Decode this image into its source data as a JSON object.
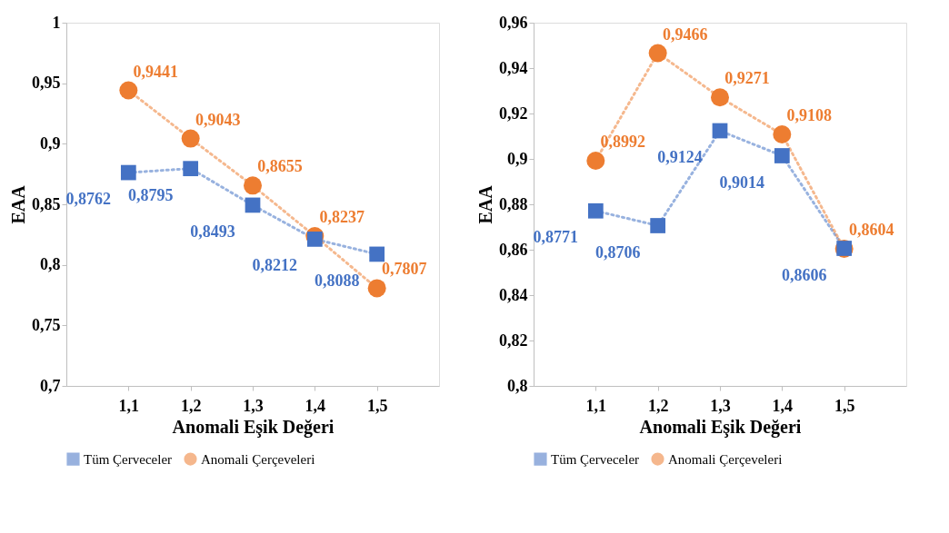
{
  "chart_data": [
    {
      "type": "line",
      "xlabel": "Anomali Eşik Değeri",
      "ylabel": "EAA",
      "categories": [
        "1,1",
        "1,2",
        "1,3",
        "1,4",
        "1,5"
      ],
      "ylim": [
        0.7,
        1
      ],
      "yticks": [
        {
          "value": 0.7,
          "label": "0,7"
        },
        {
          "value": 0.75,
          "label": "0,75"
        },
        {
          "value": 0.8,
          "label": "0,8"
        },
        {
          "value": 0.85,
          "label": "0,85"
        },
        {
          "value": 0.9,
          "label": "0,9"
        },
        {
          "value": 0.95,
          "label": "0,95"
        },
        {
          "value": 1,
          "label": "1"
        }
      ],
      "grid": false,
      "legend": "bottom",
      "line_style": "dotted",
      "series": [
        {
          "name": "Tüm Çerveceler",
          "color": "#4472c4",
          "marker": "square",
          "values": [
            0.8762,
            0.8795,
            0.8493,
            0.8212,
            0.8088
          ],
          "value_labels": [
            "0,8762",
            "0,8795",
            "0,8493",
            "0,8212",
            "0,8088"
          ]
        },
        {
          "name": "Anomali Çerçeveleri",
          "color": "#ed7d31",
          "marker": "circle",
          "values": [
            0.9441,
            0.9043,
            0.8655,
            0.8237,
            0.7807
          ],
          "value_labels": [
            "0,9441",
            "0,9043",
            "0,8655",
            "0,8237",
            "0,7807"
          ]
        }
      ]
    },
    {
      "type": "line",
      "xlabel": "Anomali Eşik Değeri",
      "ylabel": "EAA",
      "categories": [
        "1,1",
        "1,2",
        "1,3",
        "1,4",
        "1,5"
      ],
      "ylim": [
        0.8,
        0.96
      ],
      "yticks": [
        {
          "value": 0.8,
          "label": "0,8"
        },
        {
          "value": 0.82,
          "label": "0,82"
        },
        {
          "value": 0.84,
          "label": "0,84"
        },
        {
          "value": 0.86,
          "label": "0,86"
        },
        {
          "value": 0.88,
          "label": "0,88"
        },
        {
          "value": 0.9,
          "label": "0,9"
        },
        {
          "value": 0.92,
          "label": "0,92"
        },
        {
          "value": 0.94,
          "label": "0,94"
        },
        {
          "value": 0.96,
          "label": "0,96"
        }
      ],
      "grid": false,
      "legend": "bottom",
      "line_style": "dotted",
      "series": [
        {
          "name": "Tüm Çerveceler",
          "color": "#4472c4",
          "marker": "square",
          "values": [
            0.8771,
            0.8706,
            0.9124,
            0.9014,
            0.8606
          ],
          "value_labels": [
            "0,8771",
            "0,8706",
            "0,9124",
            "0,9014",
            "0,8606"
          ]
        },
        {
          "name": "Anomali Çerçeveleri",
          "color": "#ed7d31",
          "marker": "circle",
          "values": [
            0.8992,
            0.9466,
            0.9271,
            0.9108,
            0.8604
          ],
          "value_labels": [
            "0,8992",
            "0,9466",
            "0,9271",
            "0,9108",
            "0,8604"
          ]
        }
      ]
    }
  ]
}
